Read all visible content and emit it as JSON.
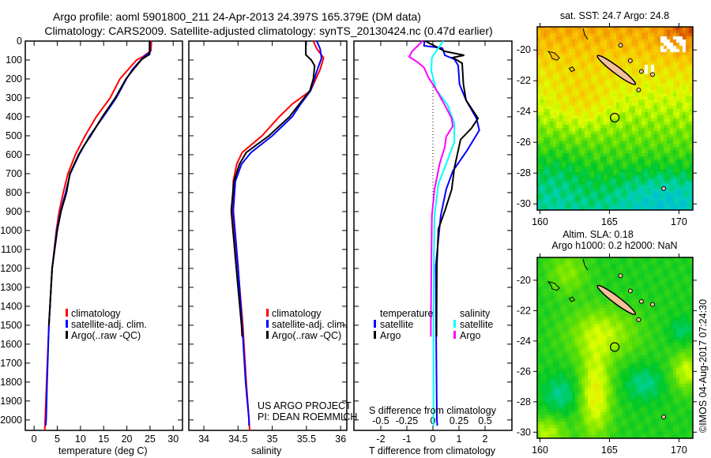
{
  "title": {
    "line1": "Argo profile: aoml 5901800_211 24-Apr-2013 24.397S 165.379E (DM data)",
    "line2": "Climatology: CARS2009. Satellite-adjusted climatology: synTS_20130424.nc (0.47d earlier)"
  },
  "colors": {
    "climatology": "#ff0000",
    "satellite": "#0000ff",
    "argo": "#000000",
    "s_argo": "#ff00ff",
    "s_satellite": "#00ffff"
  },
  "chart_data": [
    {
      "type": "line",
      "name": "temperature-profile",
      "xlabel": "temperature (deg C)",
      "ylabel": "",
      "xlim": [
        -1.9,
        32
      ],
      "ylim": [
        2055,
        0
      ],
      "xticks": [
        0,
        5,
        10,
        15,
        20,
        25,
        30
      ],
      "yticks": [
        0,
        100,
        200,
        300,
        400,
        500,
        600,
        700,
        800,
        900,
        1000,
        1100,
        1200,
        1300,
        1400,
        1500,
        1600,
        1700,
        1800,
        1900,
        2000
      ],
      "legend": [
        "climatology",
        "satellite-adj. clim.",
        "Argo(..raw -QC)"
      ],
      "series": [
        {
          "name": "climatology",
          "color": "#ff0000",
          "depth": [
            0,
            50,
            80,
            100,
            150,
            200,
            300,
            400,
            500,
            600,
            700,
            800,
            900,
            1000,
            1200,
            1500,
            1800,
            2000,
            2055
          ],
          "values": [
            25.3,
            25.2,
            23.6,
            22.1,
            20.3,
            18.5,
            16.4,
            13.4,
            11.0,
            8.9,
            7.3,
            6.3,
            5.4,
            4.8,
            3.9,
            3.2,
            2.7,
            2.4,
            2.3
          ]
        },
        {
          "name": "satellite-adj. clim.",
          "color": "#0000ff",
          "depth": [
            0,
            60,
            80,
            100,
            150,
            200,
            300,
            400,
            500,
            600,
            700,
            800,
            900,
            1000,
            1200,
            1500,
            1800,
            2000,
            2030
          ],
          "values": [
            25.0,
            25.0,
            23.8,
            23.0,
            21.2,
            19.9,
            17.7,
            14.9,
            12.0,
            9.7,
            7.8,
            6.8,
            5.7,
            4.9,
            3.9,
            3.2,
            2.8,
            2.6,
            2.5
          ]
        },
        {
          "name": "Argo(..raw -QC)",
          "color": "#000000",
          "depth": [
            0,
            70,
            90,
            100,
            150,
            200,
            300,
            400,
            500,
            550,
            600,
            700,
            800,
            900,
            1000,
            1200,
            1500
          ],
          "values": [
            24.9,
            24.9,
            23.6,
            23.1,
            21.4,
            19.8,
            17.5,
            14.7,
            12.2,
            10.8,
            9.6,
            7.7,
            7.0,
            5.8,
            5.0,
            3.9,
            3.2
          ]
        }
      ]
    },
    {
      "type": "line",
      "name": "salinity-profile",
      "xlabel": "salinity",
      "xlim": [
        33.78,
        36.09
      ],
      "ylim": [
        2055,
        0
      ],
      "xticks": [
        34,
        34.5,
        35,
        35.5,
        36
      ],
      "legend": [
        "climatology",
        "satellite-adj. clim.",
        "Argo(..raw -QC)"
      ],
      "series": [
        {
          "name": "climatology",
          "color": "#ff0000",
          "depth": [
            0,
            40,
            88,
            150,
            262,
            330,
            400,
            500,
            588,
            650,
            740,
            900,
            1200,
            1500,
            1800,
            2000,
            2055
          ],
          "values": [
            35.6,
            35.65,
            35.75,
            35.7,
            35.56,
            35.3,
            35.1,
            34.85,
            34.56,
            34.48,
            34.43,
            34.42,
            34.5,
            34.57,
            34.62,
            34.66,
            34.67
          ]
        },
        {
          "name": "satellite-adj. clim.",
          "color": "#0000ff",
          "depth": [
            0,
            40,
            90,
            150,
            262,
            330,
            400,
            500,
            588,
            650,
            740,
            895,
            1188,
            1500,
            1800,
            2000,
            2030
          ],
          "values": [
            35.65,
            35.7,
            35.72,
            35.66,
            35.56,
            35.42,
            35.29,
            35.0,
            34.69,
            34.55,
            34.46,
            34.43,
            34.5,
            34.56,
            34.61,
            34.66,
            34.66
          ]
        },
        {
          "name": "Argo(..raw -QC)",
          "color": "#000000",
          "depth": [
            0,
            72,
            100,
            130,
            200,
            262,
            330,
            400,
            500,
            588,
            650,
            740,
            895,
            1100,
            1300,
            1500,
            1560
          ],
          "values": [
            35.49,
            35.49,
            35.57,
            35.62,
            35.6,
            35.55,
            35.4,
            35.25,
            34.95,
            34.62,
            34.52,
            34.44,
            34.4,
            34.45,
            34.5,
            34.55,
            34.56
          ]
        }
      ]
    },
    {
      "type": "line",
      "name": "difference-profile",
      "xlabel": "T difference from climatology",
      "x2label": "S difference from climatology",
      "xlim": [
        -3.03,
        3.03
      ],
      "x2lim": [
        -0.7575,
        0.7575
      ],
      "xticks": [
        -2,
        -1,
        0,
        1,
        2
      ],
      "x2ticks": [
        -0.5,
        -0.25,
        0,
        0.25,
        0.5
      ],
      "legend": {
        "temperature_title": "temperature",
        "salinity_title": "salinity",
        "satellite": "satellite",
        "argo": "Argo"
      },
      "series": [
        {
          "name": "T satellite",
          "axis": "T",
          "color": "#0000ff",
          "depth": [
            0,
            25,
            37,
            75,
            96,
            129,
            229,
            312,
            408,
            471,
            575,
            687,
            783,
            921,
            1187,
            1500,
            2000,
            2030
          ],
          "values": [
            -0.33,
            -0.34,
            0.36,
            0.46,
            0.82,
            0.97,
            1.02,
            1.27,
            1.67,
            1.78,
            1.32,
            0.76,
            0.51,
            0.3,
            0.11,
            0.12,
            0.15,
            0.17
          ]
        },
        {
          "name": "T Argo",
          "axis": "T",
          "color": "#000000",
          "depth": [
            0,
            54,
            75,
            87,
            117,
            229,
            312,
            408,
            462,
            520,
            671,
            783,
            895,
            992,
            1187,
            1500,
            1560
          ],
          "values": [
            -0.29,
            0.46,
            1.2,
            0.76,
            1.12,
            1.17,
            1.27,
            1.73,
            1.47,
            1.06,
            0.82,
            0.72,
            0.46,
            0.21,
            0.15,
            0.14,
            0.14
          ]
        },
        {
          "name": "S satellite",
          "axis": "S",
          "color": "#00ffff",
          "depth": [
            0,
            46,
            87,
            158,
            254,
            337,
            433,
            533,
            646,
            754,
            921,
            1187,
            1500,
            2000,
            2030
          ],
          "values": [
            0.1,
            0.04,
            -0.01,
            -0.015,
            0.028,
            0.14,
            0.205,
            0.205,
            0.128,
            0.052,
            0.015,
            0.008,
            0.005,
            0.005,
            0.005
          ]
        },
        {
          "name": "S Argo",
          "axis": "S",
          "color": "#ff00ff",
          "depth": [
            0,
            54,
            83,
            110,
            140,
            187,
            254,
            337,
            408,
            450,
            504,
            562,
            646,
            783,
            921,
            1187,
            1500,
            1560
          ],
          "values": [
            -0.1,
            -0.2,
            -0.228,
            -0.15,
            -0.085,
            -0.048,
            0.028,
            0.113,
            0.18,
            0.19,
            0.128,
            0.113,
            0.065,
            0.015,
            -0.01,
            -0.015,
            -0.02,
            -0.02
          ]
        }
      ]
    }
  ],
  "credit": {
    "line1": "US ARGO PROJECT",
    "line2": "PI: DEAN ROEMMICH"
  },
  "maps": {
    "sst": {
      "title": "sat. SST: 24.7 Argo: 24.8",
      "lon_ticks": [
        160,
        165,
        170
      ],
      "lat_ticks": [
        -20,
        -22,
        -24,
        -26,
        -28,
        -30
      ],
      "argo_lon": 165.379,
      "argo_lat": -24.397
    },
    "sla": {
      "title1": "Altim. SLA: 0.18",
      "title2": "Argo h1000: 0.2 h2000: NaN",
      "lon_ticks": [
        160,
        165,
        170
      ],
      "lat_ticks": [
        -20,
        -22,
        -24,
        -26,
        -28,
        -30
      ],
      "argo_lon": 165.379,
      "argo_lat": -24.397
    }
  },
  "timestamp": "©IMOS 04-Aug-2017 07:24:30"
}
